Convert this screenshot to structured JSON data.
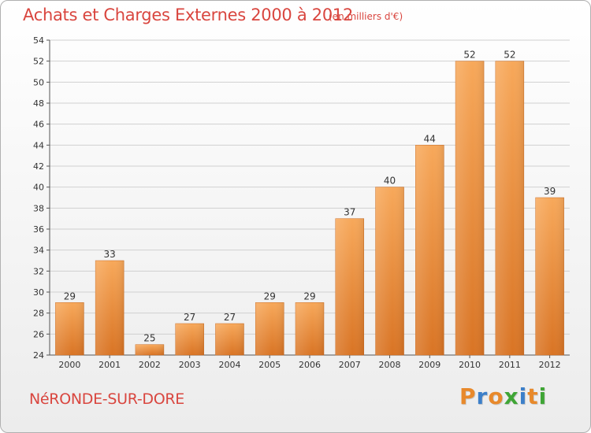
{
  "header": {
    "title": "Achats et Charges Externes 2000 à 2012",
    "subtitle": "(en milliers d'€)"
  },
  "footer": {
    "city": "NéRONDE-SUR-DORE",
    "logo": "Proxiti",
    "logo_colors": [
      "#e8892b",
      "#3c7fc9",
      "#e8892b",
      "#3fa535",
      "#3c7fc9",
      "#e8892b",
      "#3fa535"
    ]
  },
  "chart_data": {
    "type": "bar",
    "title": "Achats et Charges Externes 2000 à 2012",
    "subtitle": "(en milliers d'€)",
    "xlabel": "",
    "ylabel": "",
    "categories": [
      "2000",
      "2001",
      "2002",
      "2003",
      "2004",
      "2005",
      "2006",
      "2007",
      "2008",
      "2009",
      "2010",
      "2011",
      "2012"
    ],
    "values": [
      29,
      33,
      25,
      27,
      27,
      29,
      29,
      37,
      40,
      44,
      52,
      52,
      39
    ],
    "ylim": [
      24,
      54
    ],
    "yticks": [
      24,
      26,
      28,
      30,
      32,
      34,
      36,
      38,
      40,
      42,
      44,
      46,
      48,
      50,
      52,
      54
    ],
    "grid": true,
    "bar_color_top": "#f7a85a",
    "bar_color_bottom": "#d97424"
  }
}
